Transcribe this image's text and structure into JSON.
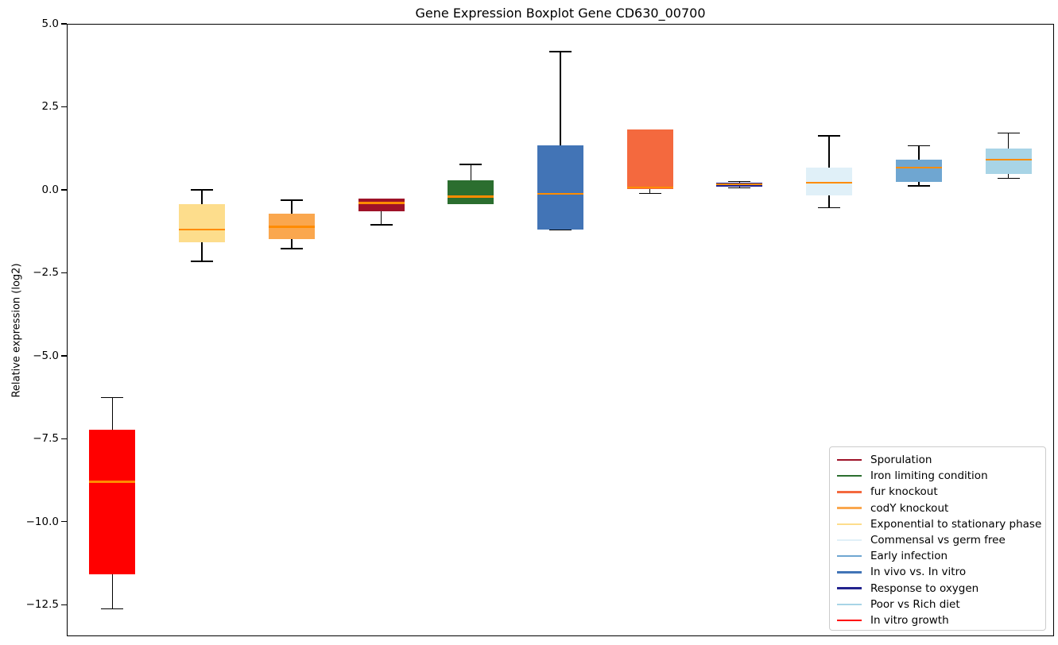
{
  "chart_data": {
    "type": "boxplot",
    "title": "Gene Expression Boxplot Gene CD630_00700",
    "ylabel": "Relative expression (log2)",
    "xlabel": "",
    "ylim": [
      -13.4,
      5.0
    ],
    "grid": false,
    "legend_position": "lower right",
    "median_color": "#FF8C00",
    "whisker_color": "#000000",
    "yticks": [
      {
        "label": "5.0",
        "value": 5.0
      },
      {
        "label": "2.5",
        "value": 2.5
      },
      {
        "label": "0.0",
        "value": 0.0
      },
      {
        "label": "−2.5",
        "value": -2.5
      },
      {
        "label": "−5.0",
        "value": -5.0
      },
      {
        "label": "−7.5",
        "value": -7.5
      },
      {
        "label": "−10.0",
        "value": -10.0
      },
      {
        "label": "−12.5",
        "value": -12.5
      }
    ],
    "series": [
      {
        "label": "In vitro growth",
        "color": "#FF0000",
        "whislo": -12.6,
        "q1": -11.55,
        "med": -8.77,
        "q3": -7.21,
        "whishi": -6.23
      },
      {
        "label": "Exponential to stationary phase",
        "color": "#FDDD8C",
        "whislo": -2.13,
        "q1": -1.55,
        "med": -1.17,
        "q3": -0.41,
        "whishi": 0.02
      },
      {
        "label": "codY knockout",
        "color": "#FAA74E",
        "whislo": -1.75,
        "q1": -1.46,
        "med": -1.09,
        "q3": -0.69,
        "whishi": -0.29
      },
      {
        "label": "Sporulation",
        "color": "#9E1228",
        "whislo": -1.03,
        "q1": -0.63,
        "med": -0.37,
        "q3": -0.25,
        "whishi": -0.25
      },
      {
        "label": "Iron limiting condition",
        "color": "#2B6E2F",
        "whislo": -0.4,
        "q1": -0.4,
        "med": -0.18,
        "q3": 0.31,
        "whishi": 0.79
      },
      {
        "label": "In vivo vs. In vitro",
        "color": "#4274B6",
        "whislo": -1.18,
        "q1": -1.18,
        "med": -0.09,
        "q3": 1.37,
        "whishi": 4.19
      },
      {
        "label": "fur knockout",
        "color": "#F4693E",
        "whislo": -0.08,
        "q1": 0.04,
        "med": 0.09,
        "q3": 1.83,
        "whishi": 1.83
      },
      {
        "label": "Response to oxygen",
        "color": "#23238E",
        "whislo": 0.09,
        "q1": 0.13,
        "med": 0.19,
        "q3": 0.24,
        "whishi": 0.27
      },
      {
        "label": "Commensal vs germ free",
        "color": "#E0F0F8",
        "whislo": -0.51,
        "q1": -0.14,
        "med": 0.23,
        "q3": 0.69,
        "whishi": 1.65
      },
      {
        "label": "Early infection",
        "color": "#6FA6D1",
        "whislo": 0.14,
        "q1": 0.27,
        "med": 0.7,
        "q3": 0.94,
        "whishi": 1.35
      },
      {
        "label": "Poor vs Rich diet",
        "color": "#A8D4E6",
        "whislo": 0.37,
        "q1": 0.49,
        "med": 0.93,
        "q3": 1.27,
        "whishi": 1.73
      }
    ],
    "legend": [
      {
        "label": "Sporulation",
        "color": "#9E1228"
      },
      {
        "label": "Iron limiting condition",
        "color": "#2B6E2F"
      },
      {
        "label": "fur knockout",
        "color": "#F4693E"
      },
      {
        "label": "codY knockout",
        "color": "#FAA74E"
      },
      {
        "label": "Exponential to stationary phase",
        "color": "#FDDD8C"
      },
      {
        "label": "Commensal vs germ free",
        "color": "#E0F0F8"
      },
      {
        "label": "Early infection",
        "color": "#6FA6D1"
      },
      {
        "label": "In vivo vs. In vitro",
        "color": "#4274B6"
      },
      {
        "label": "Response to oxygen",
        "color": "#23238E"
      },
      {
        "label": "Poor vs Rich diet",
        "color": "#A8D4E6"
      },
      {
        "label": "In vitro growth",
        "color": "#FF0000"
      }
    ]
  }
}
